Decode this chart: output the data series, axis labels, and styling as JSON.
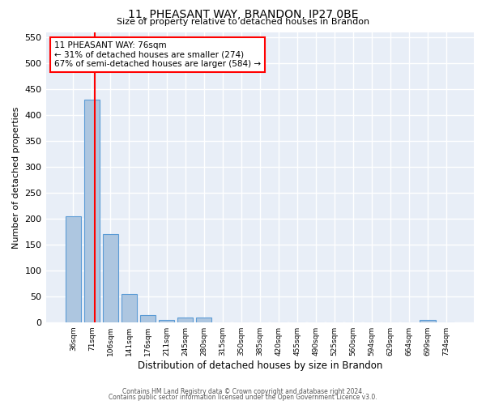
{
  "title": "11, PHEASANT WAY, BRANDON, IP27 0BE",
  "subtitle": "Size of property relative to detached houses in Brandon",
  "xlabel": "Distribution of detached houses by size in Brandon",
  "ylabel": "Number of detached properties",
  "bar_color": "#adc6e0",
  "bar_edge_color": "#5b9bd5",
  "background_color": "#e8eef7",
  "grid_color": "white",
  "categories": [
    "36sqm",
    "71sqm",
    "106sqm",
    "141sqm",
    "176sqm",
    "211sqm",
    "245sqm",
    "280sqm",
    "315sqm",
    "350sqm",
    "385sqm",
    "420sqm",
    "455sqm",
    "490sqm",
    "525sqm",
    "560sqm",
    "594sqm",
    "629sqm",
    "664sqm",
    "699sqm",
    "734sqm"
  ],
  "values": [
    205,
    430,
    170,
    55,
    14,
    5,
    9,
    9,
    0,
    0,
    0,
    0,
    0,
    0,
    0,
    0,
    0,
    0,
    0,
    5,
    0
  ],
  "ylim": [
    0,
    560
  ],
  "yticks": [
    0,
    50,
    100,
    150,
    200,
    250,
    300,
    350,
    400,
    450,
    500,
    550
  ],
  "red_line_x": 1.14,
  "annotation_text": "11 PHEASANT WAY: 76sqm\n← 31% of detached houses are smaller (274)\n67% of semi-detached houses are larger (584) →",
  "annotation_box_color": "white",
  "annotation_box_edge_color": "red",
  "footer_line1": "Contains HM Land Registry data © Crown copyright and database right 2024.",
  "footer_line2": "Contains public sector information licensed under the Open Government Licence v3.0."
}
